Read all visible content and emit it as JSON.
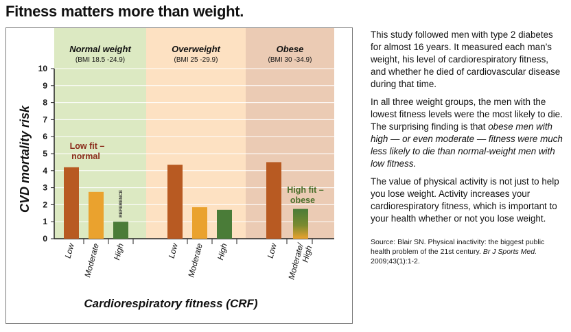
{
  "title": "Fitness matters more than weight.",
  "paragraphs": {
    "p1": "This study followed men with type 2 diabetes for almost 16 years. It measured each man’s weight, his level of cardiorespiratory fitness, and whether he died of cardiovascular disease during that time.",
    "p2_a": "In all three weight groups, the men with the lowest fitness levels were the most likely to die. The surprising finding is that ",
    "p2_b": "obese men with high — or even moderate — fitness were much less likely to die than normal-weight men with low fitness.",
    "p3": "The value of physical activity is not just to help you lose weight. Activity increases your cardiorespiratory fitness, which is important to your health whether or not you lose weight.",
    "source_a": "Source: Blair SN. Physical inactivity: the biggest public health problem of the 21st century. ",
    "source_b": "Br J Sports Med.",
    "source_c": " 2009;43(1):1-2."
  },
  "chart_data": {
    "type": "bar",
    "ylabel": "CVD mortality risk",
    "xlabel": "Cardiorespiratory fitness (CRF)",
    "ylim": [
      0,
      10
    ],
    "yticks": [
      "0",
      "1",
      "2",
      "3",
      "4",
      "5",
      "6",
      "7",
      "8",
      "9",
      "10"
    ],
    "groups": [
      {
        "name": "Normal weight",
        "range": "(BMI 18.5 -24.9)",
        "color": "#dce9c2"
      },
      {
        "name": "Overweight",
        "range": "(BMI 25 -29.9)",
        "color": "#fde1c2"
      },
      {
        "name": "Obese",
        "range": "(BMI 30 -34.9)",
        "color": "#ebcbb4"
      }
    ],
    "bars": [
      {
        "group": 0,
        "category": "Low",
        "value": 4.2,
        "color": "#b85a22"
      },
      {
        "group": 0,
        "category": "Moderate",
        "value": 2.75,
        "color": "#eaa22e"
      },
      {
        "group": 0,
        "category": "High",
        "value": 1.0,
        "color": "#4a7c38"
      },
      {
        "group": 1,
        "category": "Low",
        "value": 4.35,
        "color": "#b85a22"
      },
      {
        "group": 1,
        "category": "Moderate",
        "value": 1.85,
        "color": "#eaa22e"
      },
      {
        "group": 1,
        "category": "High",
        "value": 1.7,
        "color": "#4a7c38"
      },
      {
        "group": 2,
        "category": "Low",
        "value": 4.5,
        "color": "#b85a22"
      },
      {
        "group": 2,
        "category": "Moderate/ High",
        "value": 1.75,
        "color": "gradient"
      }
    ],
    "annotations": {
      "low_fit": [
        "Low fit –",
        "normal"
      ],
      "high_fit": [
        "High fit –",
        "obese"
      ],
      "reference": "REFERENCE"
    },
    "colors": {
      "low_fit_text": "#8a2a1a",
      "high_fit_text": "#4a6e2a"
    }
  }
}
